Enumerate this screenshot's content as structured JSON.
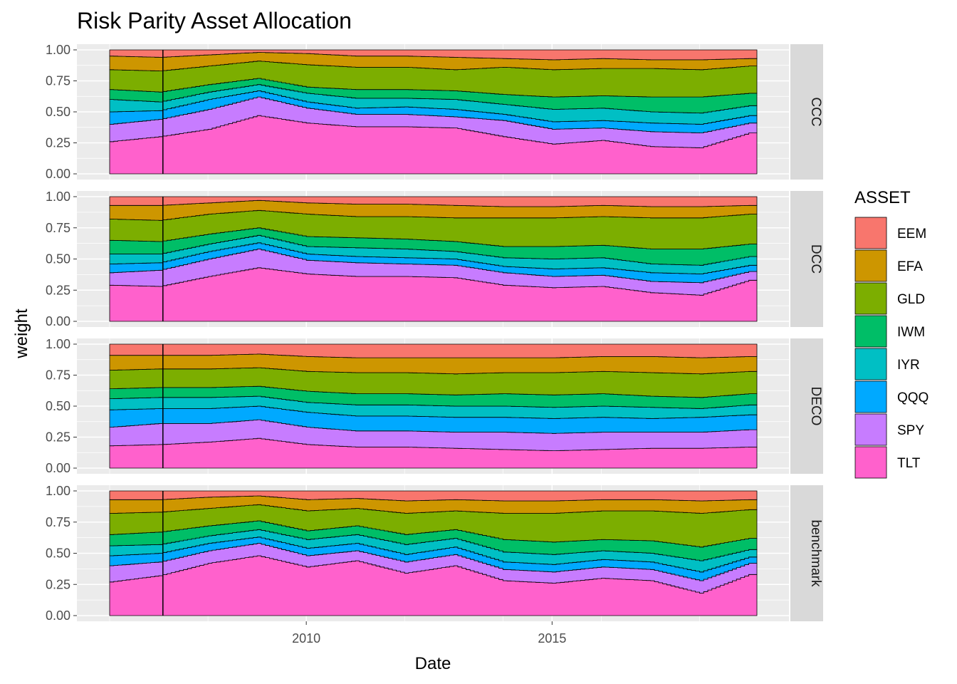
{
  "chart_data": {
    "type": "area",
    "title": "Risk Parity Asset Allocation",
    "xlabel": "Date",
    "ylabel": "weight",
    "x_range": [
      "2006-01-01",
      "2019-03-01"
    ],
    "x_ticks": [
      "2010",
      "2015"
    ],
    "ylim": [
      0,
      1
    ],
    "y_ticks": [
      "0.00",
      "0.25",
      "0.50",
      "0.75",
      "1.00"
    ],
    "legend_title": "ASSET",
    "legend_position": "right",
    "facets": [
      "CCC",
      "DCC",
      "DECO",
      "benchmark"
    ],
    "assets": [
      "EEM",
      "EFA",
      "GLD",
      "IWM",
      "IYR",
      "QQQ",
      "SPY",
      "TLT"
    ],
    "colors": {
      "EEM": "#F8766D",
      "EFA": "#CD9600",
      "GLD": "#7CAE00",
      "IWM": "#00BE67",
      "IYR": "#00BFC4",
      "QQQ": "#00A9FF",
      "SPY": "#C77CFF",
      "TLT": "#FF61CC"
    },
    "vertical_line_date": "2007-02-01",
    "dates": [
      "2006-01",
      "2007-01",
      "2008-01",
      "2009-01",
      "2010-01",
      "2011-01",
      "2012-01",
      "2013-01",
      "2014-01",
      "2015-01",
      "2016-01",
      "2017-01",
      "2018-01",
      "2019-01"
    ],
    "note_values": "Values are cumulative stacked weights (upper boundary of each band), read approximately at each date; TLT band starts at 0, EEM band tops at 1.00.",
    "series": [
      {
        "facet": "CCC",
        "cumulative": {
          "TLT": [
            0.26,
            0.3,
            0.36,
            0.47,
            0.41,
            0.38,
            0.38,
            0.37,
            0.3,
            0.24,
            0.27,
            0.22,
            0.21,
            0.33
          ],
          "SPY": [
            0.4,
            0.44,
            0.52,
            0.62,
            0.53,
            0.48,
            0.48,
            0.46,
            0.43,
            0.36,
            0.37,
            0.34,
            0.33,
            0.41
          ],
          "QQQ": [
            0.5,
            0.51,
            0.6,
            0.67,
            0.58,
            0.53,
            0.54,
            0.52,
            0.48,
            0.42,
            0.43,
            0.41,
            0.4,
            0.47
          ],
          "IYR": [
            0.6,
            0.58,
            0.66,
            0.72,
            0.65,
            0.61,
            0.61,
            0.6,
            0.56,
            0.52,
            0.53,
            0.5,
            0.49,
            0.55
          ],
          "IWM": [
            0.68,
            0.66,
            0.72,
            0.77,
            0.7,
            0.68,
            0.68,
            0.67,
            0.64,
            0.62,
            0.63,
            0.62,
            0.62,
            0.65
          ],
          "GLD": [
            0.84,
            0.83,
            0.87,
            0.91,
            0.88,
            0.86,
            0.86,
            0.84,
            0.86,
            0.84,
            0.85,
            0.85,
            0.84,
            0.87
          ],
          "EFA": [
            0.95,
            0.94,
            0.96,
            0.98,
            0.97,
            0.95,
            0.95,
            0.94,
            0.93,
            0.92,
            0.93,
            0.92,
            0.92,
            0.93
          ],
          "EEM": [
            1.0,
            1.0,
            1.0,
            1.0,
            1.0,
            1.0,
            1.0,
            1.0,
            1.0,
            1.0,
            1.0,
            1.0,
            1.0,
            1.0
          ]
        }
      },
      {
        "facet": "DCC",
        "cumulative": {
          "TLT": [
            0.29,
            0.28,
            0.36,
            0.43,
            0.38,
            0.36,
            0.36,
            0.35,
            0.29,
            0.27,
            0.28,
            0.23,
            0.21,
            0.33
          ],
          "SPY": [
            0.39,
            0.41,
            0.5,
            0.58,
            0.49,
            0.47,
            0.46,
            0.45,
            0.39,
            0.36,
            0.37,
            0.32,
            0.31,
            0.4
          ],
          "QQQ": [
            0.46,
            0.47,
            0.56,
            0.63,
            0.54,
            0.52,
            0.51,
            0.5,
            0.44,
            0.42,
            0.43,
            0.39,
            0.38,
            0.45
          ],
          "IYR": [
            0.54,
            0.54,
            0.62,
            0.69,
            0.6,
            0.59,
            0.58,
            0.56,
            0.51,
            0.5,
            0.51,
            0.46,
            0.45,
            0.52
          ],
          "IWM": [
            0.65,
            0.64,
            0.7,
            0.75,
            0.68,
            0.67,
            0.66,
            0.64,
            0.6,
            0.6,
            0.61,
            0.58,
            0.58,
            0.62
          ],
          "GLD": [
            0.82,
            0.81,
            0.86,
            0.89,
            0.86,
            0.84,
            0.84,
            0.83,
            0.83,
            0.83,
            0.84,
            0.83,
            0.83,
            0.86
          ],
          "EFA": [
            0.93,
            0.93,
            0.95,
            0.97,
            0.95,
            0.94,
            0.94,
            0.93,
            0.92,
            0.92,
            0.93,
            0.92,
            0.92,
            0.93
          ],
          "EEM": [
            1.0,
            1.0,
            1.0,
            1.0,
            1.0,
            1.0,
            1.0,
            1.0,
            1.0,
            1.0,
            1.0,
            1.0,
            1.0,
            1.0
          ]
        }
      },
      {
        "facet": "DECO",
        "cumulative": {
          "TLT": [
            0.18,
            0.19,
            0.21,
            0.24,
            0.19,
            0.17,
            0.17,
            0.16,
            0.15,
            0.14,
            0.15,
            0.16,
            0.16,
            0.17
          ],
          "SPY": [
            0.33,
            0.36,
            0.36,
            0.39,
            0.33,
            0.3,
            0.3,
            0.29,
            0.29,
            0.28,
            0.29,
            0.29,
            0.29,
            0.31
          ],
          "QQQ": [
            0.47,
            0.48,
            0.48,
            0.5,
            0.45,
            0.42,
            0.42,
            0.41,
            0.41,
            0.4,
            0.41,
            0.4,
            0.41,
            0.43
          ],
          "IYR": [
            0.56,
            0.57,
            0.57,
            0.58,
            0.53,
            0.51,
            0.51,
            0.5,
            0.5,
            0.49,
            0.5,
            0.49,
            0.48,
            0.51
          ],
          "IWM": [
            0.64,
            0.65,
            0.65,
            0.66,
            0.62,
            0.6,
            0.6,
            0.59,
            0.6,
            0.59,
            0.6,
            0.58,
            0.57,
            0.6
          ],
          "GLD": [
            0.79,
            0.8,
            0.8,
            0.81,
            0.78,
            0.77,
            0.77,
            0.76,
            0.77,
            0.77,
            0.78,
            0.77,
            0.76,
            0.78
          ],
          "EFA": [
            0.91,
            0.91,
            0.91,
            0.92,
            0.9,
            0.89,
            0.89,
            0.89,
            0.89,
            0.89,
            0.9,
            0.9,
            0.89,
            0.9
          ],
          "EEM": [
            1.0,
            1.0,
            1.0,
            1.0,
            1.0,
            1.0,
            1.0,
            1.0,
            1.0,
            1.0,
            1.0,
            1.0,
            1.0,
            1.0
          ]
        }
      },
      {
        "facet": "benchmark",
        "cumulative": {
          "TLT": [
            0.27,
            0.32,
            0.42,
            0.48,
            0.39,
            0.44,
            0.34,
            0.4,
            0.28,
            0.26,
            0.3,
            0.28,
            0.18,
            0.33
          ],
          "SPY": [
            0.4,
            0.43,
            0.52,
            0.58,
            0.48,
            0.52,
            0.43,
            0.49,
            0.37,
            0.35,
            0.39,
            0.37,
            0.28,
            0.42
          ],
          "QQQ": [
            0.48,
            0.5,
            0.58,
            0.63,
            0.54,
            0.58,
            0.49,
            0.55,
            0.43,
            0.41,
            0.45,
            0.43,
            0.35,
            0.47
          ],
          "IYR": [
            0.56,
            0.57,
            0.64,
            0.69,
            0.61,
            0.65,
            0.57,
            0.62,
            0.51,
            0.49,
            0.52,
            0.5,
            0.44,
            0.53
          ],
          "IWM": [
            0.65,
            0.67,
            0.72,
            0.76,
            0.68,
            0.72,
            0.65,
            0.69,
            0.61,
            0.59,
            0.61,
            0.6,
            0.55,
            0.62
          ],
          "GLD": [
            0.82,
            0.83,
            0.86,
            0.89,
            0.84,
            0.86,
            0.82,
            0.84,
            0.82,
            0.82,
            0.84,
            0.84,
            0.82,
            0.85
          ],
          "EFA": [
            0.93,
            0.93,
            0.95,
            0.96,
            0.93,
            0.94,
            0.92,
            0.93,
            0.92,
            0.92,
            0.93,
            0.93,
            0.92,
            0.93
          ],
          "EEM": [
            1.0,
            1.0,
            1.0,
            1.0,
            1.0,
            1.0,
            1.0,
            1.0,
            1.0,
            1.0,
            1.0,
            1.0,
            1.0,
            1.0
          ]
        }
      }
    ]
  }
}
